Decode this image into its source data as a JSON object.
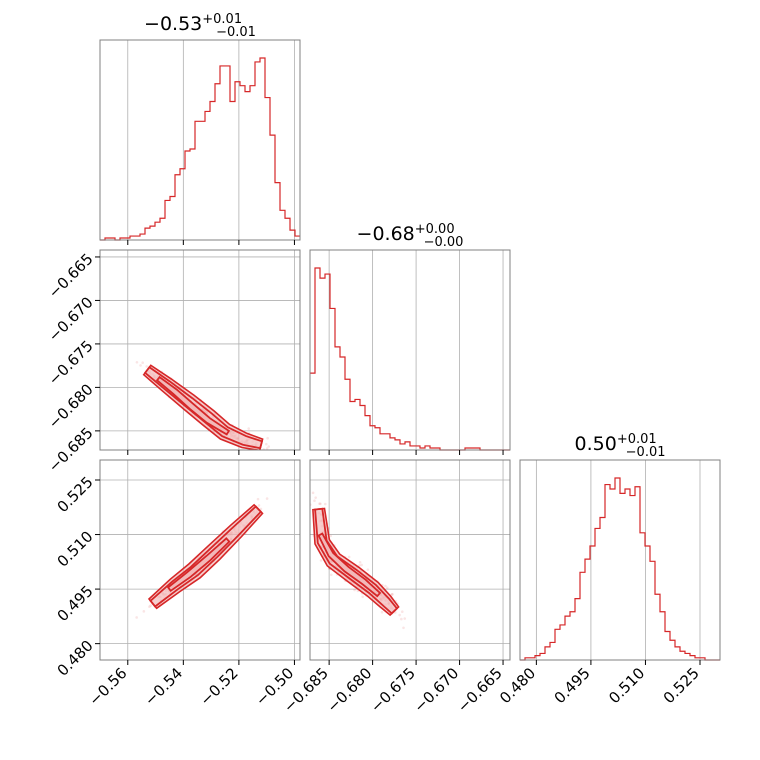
{
  "colors": {
    "accent": "#d62728",
    "grid": "#b0b0b0",
    "frame": "#808080",
    "contour_fill": "#f2b8b8"
  },
  "chart_data": {
    "type": "corner",
    "parameters": [
      {
        "title_main": "−0.53",
        "title_sup": "+0.01",
        "title_sub": "−0.01",
        "range": [
          -0.57,
          -0.498
        ]
      },
      {
        "title_main": "−0.68",
        "title_sup": "+0.00",
        "title_sub": "−0.00",
        "range": [
          -0.6872,
          -0.6642
        ]
      },
      {
        "title_main": "0.50",
        "title_sup": "+0.01",
        "title_sub": "−0.01",
        "range": [
          0.4755,
          0.5305
        ]
      }
    ],
    "ticks": {
      "x0": {
        "values": [
          -0.56,
          -0.54,
          -0.52,
          -0.5
        ],
        "labels": [
          "−0.56",
          "−0.54",
          "−0.52",
          "−0.50"
        ]
      },
      "x1": {
        "values": [
          -0.685,
          -0.68,
          -0.675,
          -0.67,
          -0.665
        ],
        "labels": [
          "−0.685",
          "−0.680",
          "−0.675",
          "−0.670",
          "−0.665"
        ]
      },
      "x2": {
        "values": [
          0.48,
          0.495,
          0.51,
          0.525
        ],
        "labels": [
          "0.480",
          "0.495",
          "0.510",
          "0.525"
        ]
      },
      "y1": {
        "values": [
          -0.665,
          -0.67,
          -0.675,
          -0.68,
          -0.685
        ],
        "labels": [
          "−0.665",
          "−0.670",
          "−0.675",
          "−0.680",
          "−0.685"
        ]
      },
      "y2": {
        "values": [
          0.525,
          0.51,
          0.495,
          0.48
        ],
        "labels": [
          "0.525",
          "0.510",
          "0.495",
          "0.480"
        ]
      }
    },
    "hist0": {
      "bin_start": -0.57,
      "bin_width": 0.0018,
      "counts": [
        0,
        1,
        1,
        0,
        1,
        1,
        2,
        2,
        3,
        6,
        7,
        9,
        11,
        20,
        22,
        33,
        36,
        45,
        46,
        60,
        60,
        65,
        70,
        79,
        88,
        88,
        70,
        80,
        78,
        75,
        78,
        90,
        92,
        72,
        53,
        29,
        15,
        11,
        5,
        2
      ]
    },
    "hist1": {
      "bin_start": -0.6872,
      "bin_width": 0.000575,
      "counts": [
        38,
        90,
        85,
        87,
        70,
        51,
        46,
        35,
        24,
        25,
        22,
        17,
        12,
        11,
        8,
        8,
        6,
        5,
        3,
        4,
        2,
        2,
        1,
        2,
        1,
        1,
        0,
        0,
        0,
        0,
        0,
        1,
        1,
        1,
        0,
        0,
        0,
        0,
        0,
        0
      ]
    },
    "hist2": {
      "bin_start": 0.4755,
      "bin_width": 0.001375,
      "counts": [
        0,
        1,
        1,
        2,
        3,
        6,
        8,
        14,
        16,
        20,
        22,
        28,
        40,
        46,
        52,
        60,
        65,
        80,
        78,
        83,
        76,
        78,
        75,
        79,
        58,
        52,
        45,
        30,
        22,
        13,
        9,
        6,
        4,
        3,
        2,
        1,
        1,
        0,
        0,
        0
      ]
    },
    "pair_10": {
      "ridge": [
        [
          -0.553,
          -0.678
        ],
        [
          -0.546,
          -0.6797
        ],
        [
          -0.538,
          -0.6817
        ],
        [
          -0.531,
          -0.6835
        ],
        [
          -0.525,
          -0.6851
        ],
        [
          -0.518,
          -0.6861
        ],
        [
          -0.512,
          -0.6866
        ]
      ],
      "core": [
        [
          -0.549,
          -0.679
        ],
        [
          -0.543,
          -0.6805
        ],
        [
          -0.537,
          -0.6822
        ],
        [
          -0.531,
          -0.6838
        ],
        [
          -0.524,
          -0.6852
        ]
      ]
    },
    "pair_20": {
      "ridge": [
        [
          -0.551,
          0.491
        ],
        [
          -0.543,
          0.496
        ],
        [
          -0.536,
          0.5
        ],
        [
          -0.529,
          0.505
        ],
        [
          -0.521,
          0.511
        ],
        [
          -0.513,
          0.517
        ]
      ],
      "core": [
        [
          -0.545,
          0.495
        ],
        [
          -0.538,
          0.499
        ],
        [
          -0.531,
          0.5035
        ],
        [
          -0.524,
          0.5085
        ]
      ]
    },
    "pair_21": {
      "ridge": [
        [
          -0.6862,
          0.517
        ],
        [
          -0.6858,
          0.508
        ],
        [
          -0.6845,
          0.503
        ],
        [
          -0.6822,
          0.499
        ],
        [
          -0.68,
          0.495
        ],
        [
          -0.6785,
          0.4915
        ],
        [
          -0.6775,
          0.489
        ]
      ],
      "core": [
        [
          -0.686,
          0.51
        ],
        [
          -0.6848,
          0.5045
        ],
        [
          -0.683,
          0.5005
        ],
        [
          -0.681,
          0.497
        ],
        [
          -0.6793,
          0.4935
        ]
      ]
    }
  }
}
